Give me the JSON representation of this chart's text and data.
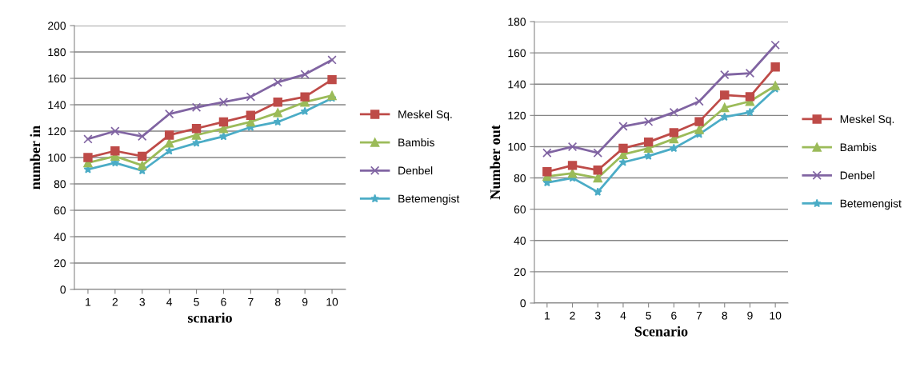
{
  "chart_data": [
    {
      "type": "line",
      "xlabel": "scnario",
      "ylabel": "number in",
      "categories": [
        "1",
        "2",
        "3",
        "4",
        "5",
        "6",
        "7",
        "8",
        "9",
        "10"
      ],
      "ylim": [
        0,
        200
      ],
      "yticks": [
        0,
        20,
        40,
        60,
        80,
        100,
        120,
        140,
        160,
        180,
        200
      ],
      "grid": "y",
      "legend": "right",
      "series": [
        {
          "name": "Meskel Sq.",
          "color": "#be4b48",
          "marker": "square",
          "values": [
            100,
            105,
            101,
            117,
            122,
            127,
            132,
            142,
            146,
            159
          ]
        },
        {
          "name": "Bambis",
          "color": "#9bbb59",
          "marker": "triangle",
          "values": [
            96,
            101,
            94,
            111,
            117,
            122,
            127,
            134,
            142,
            147
          ]
        },
        {
          "name": "Denbel",
          "color": "#8064a2",
          "marker": "cross",
          "values": [
            114,
            120,
            116,
            133,
            138,
            142,
            146,
            157,
            163,
            174
          ]
        },
        {
          "name": "Betemengist",
          "color": "#4bacc6",
          "marker": "star",
          "values": [
            91,
            96,
            90,
            105,
            111,
            116,
            123,
            127,
            135,
            145
          ]
        }
      ]
    },
    {
      "type": "line",
      "xlabel": "Scenario",
      "ylabel": "Number out",
      "categories": [
        "1",
        "2",
        "3",
        "4",
        "5",
        "6",
        "7",
        "8",
        "9",
        "10"
      ],
      "ylim": [
        0,
        180
      ],
      "yticks": [
        0,
        20,
        40,
        60,
        80,
        100,
        120,
        140,
        160,
        180
      ],
      "grid": "y",
      "legend": "right",
      "series": [
        {
          "name": "Meskel Sq.",
          "color": "#be4b48",
          "marker": "square",
          "values": [
            84,
            88,
            85,
            99,
            103,
            109,
            116,
            133,
            132,
            151
          ]
        },
        {
          "name": "Bambis",
          "color": "#9bbb59",
          "marker": "triangle",
          "values": [
            81,
            83,
            80,
            95,
            99,
            105,
            111,
            125,
            129,
            139
          ]
        },
        {
          "name": "Denbel",
          "color": "#8064a2",
          "marker": "cross",
          "values": [
            96,
            100,
            96,
            113,
            116,
            122,
            129,
            146,
            147,
            165
          ]
        },
        {
          "name": "Betemengist",
          "color": "#4bacc6",
          "marker": "star",
          "values": [
            77,
            80,
            71,
            90,
            94,
            99,
            108,
            119,
            122,
            137
          ]
        }
      ]
    }
  ]
}
